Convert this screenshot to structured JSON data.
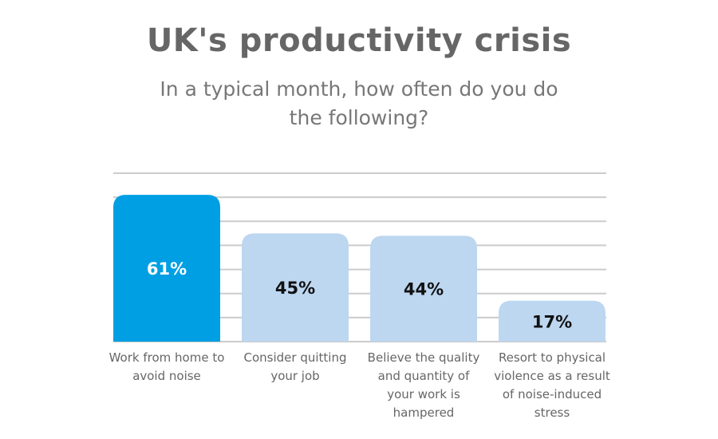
{
  "chart_data": {
    "type": "bar",
    "title": "UK's productivity crisis",
    "subtitle": "In a typical month, how often do you do the following?",
    "categories": [
      "Work from home to avoid noise",
      "Consider quitting your job",
      "Believe the quality and quantity of your work is hampered",
      "Resort to physical violence as a result of noise-induced stress"
    ],
    "values": [
      61,
      45,
      44,
      17
    ],
    "data_labels": [
      "61%",
      "45%",
      "44%",
      "17%"
    ],
    "unit": "%",
    "ylim": [
      0,
      70
    ],
    "grid": true,
    "colors": {
      "highlight": "#009fe3",
      "bar": "#bdd7f1",
      "highlight_label": "#ffffff",
      "bar_label": "#111111",
      "grid": "#cccccc"
    }
  }
}
